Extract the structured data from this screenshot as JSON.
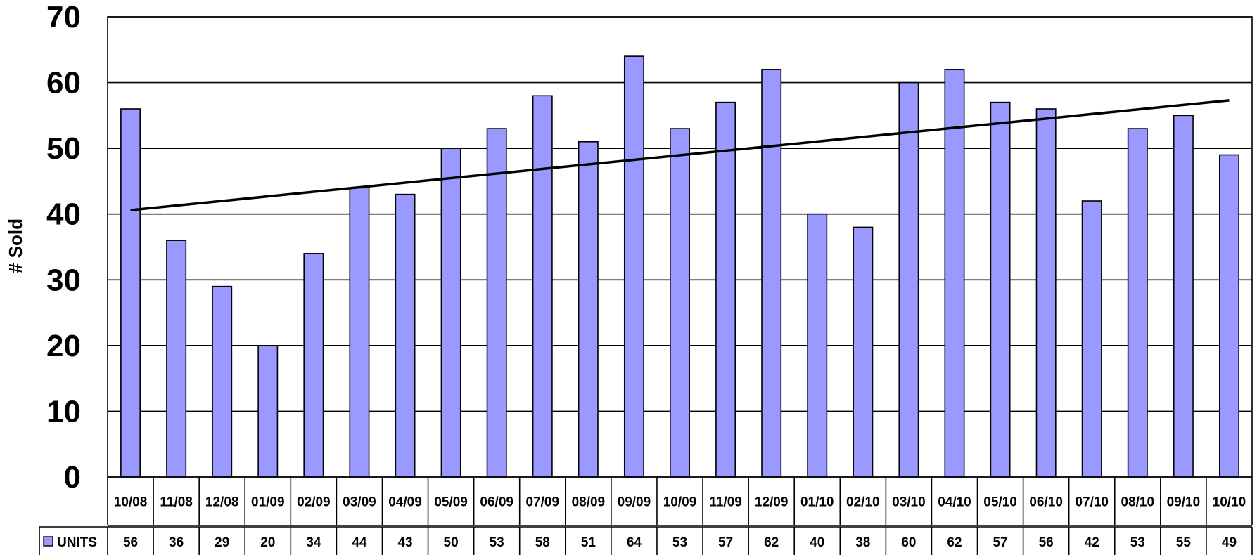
{
  "chart_data": {
    "type": "bar",
    "ylabel": "# Sold",
    "ylim": [
      0,
      70
    ],
    "yticks": [
      0,
      10,
      20,
      30,
      40,
      50,
      60,
      70
    ],
    "grid": true,
    "categories": [
      "10/08",
      "11/08",
      "12/08",
      "01/09",
      "02/09",
      "03/09",
      "04/09",
      "05/09",
      "06/09",
      "07/09",
      "08/09",
      "09/09",
      "10/09",
      "11/09",
      "12/09",
      "01/10",
      "02/10",
      "03/10",
      "04/10",
      "05/10",
      "06/10",
      "07/10",
      "08/10",
      "09/10",
      "10/10"
    ],
    "series": [
      {
        "name": "UNITS",
        "values": [
          56,
          36,
          29,
          20,
          34,
          44,
          43,
          50,
          53,
          58,
          51,
          64,
          53,
          57,
          62,
          40,
          38,
          60,
          62,
          57,
          56,
          42,
          53,
          55,
          49
        ]
      }
    ],
    "trendline": {
      "type": "linear",
      "from": 40.6,
      "to": 57.3
    },
    "data_table": true,
    "colors": {
      "bar": "#9999ff",
      "bar_stroke": "#000000",
      "trend": "#000000",
      "grid": "#000000"
    }
  }
}
